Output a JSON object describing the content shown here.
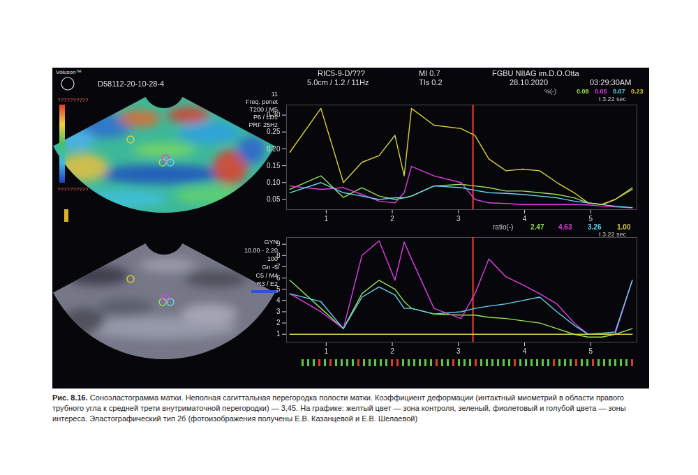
{
  "screen": {
    "brand": "Voluson™",
    "file_id": "D58112-20-10-28-4",
    "probe": "RIC5-9-D/???",
    "mi": "MI 0.7",
    "institution": "FGBU NIIAG im.D.O.Otta",
    "depth": "5.0cm / 1.2 / 11Hz",
    "tis": "TIs 0.2",
    "date": "28.10.2020",
    "time": "03:29:30AM",
    "elasto_settings": [
      "11",
      "Freq. penet",
      "T200 / M5",
      "P6 / LD1",
      "PRF 25Hz"
    ],
    "colorbar_labels": [
      "??????????",
      "??????????"
    ],
    "bmode_settings": [
      "GYN",
      "10.00 - 2.20",
      "100",
      "Gn -5",
      "C5 / M4",
      "R3 / E2"
    ]
  },
  "chart_data": [
    {
      "type": "line",
      "readout_label": "%(-)",
      "time_label": "t 3.22 sec",
      "cursor_x": 3.22,
      "x": [
        0.45,
        0.92,
        1.26,
        1.54,
        1.8,
        2.04,
        2.18,
        2.29,
        2.63,
        3.04,
        3.25,
        3.46,
        3.72,
        3.97,
        4.23,
        4.49,
        4.75,
        4.96,
        5.17,
        5.37,
        5.63
      ],
      "xlim": [
        0.4,
        5.7
      ],
      "xticks": [
        1,
        2,
        3,
        4,
        5
      ],
      "ylim": [
        0.02,
        0.33
      ],
      "yticks": [
        0.05,
        {
          "value": 0.1,
          "label": "0.10"
        },
        0.15,
        {
          "value": 0.2,
          "label": "0.20"
        },
        0.25,
        {
          "value": 0.3,
          "label": "0.30"
        }
      ],
      "series": [
        {
          "color": "#9be15a",
          "readout": "0.08",
          "values": [
            0.08,
            0.12,
            0.056,
            0.085,
            0.06,
            0.05,
            0.055,
            0.06,
            0.09,
            0.095,
            0.09,
            0.085,
            0.075,
            0.075,
            0.07,
            0.065,
            0.055,
            0.04,
            0.035,
            0.05,
            0.085
          ]
        },
        {
          "color": "#e23ee6",
          "readout": "0.05",
          "values": [
            0.09,
            0.08,
            0.085,
            0.065,
            0.045,
            0.04,
            0.07,
            0.148,
            0.12,
            0.1,
            0.05,
            0.04,
            0.038,
            0.035,
            0.035,
            0.035,
            0.035,
            0.034,
            0.03,
            0.028,
            0.025
          ]
        },
        {
          "color": "#62d6f0",
          "readout": "0.07",
          "values": [
            0.07,
            0.1,
            0.07,
            0.06,
            0.05,
            0.055,
            0.055,
            0.06,
            0.09,
            0.085,
            0.077,
            0.07,
            0.068,
            0.065,
            0.06,
            0.055,
            0.045,
            0.04,
            0.035,
            0.03,
            0.026
          ]
        },
        {
          "color": "#d9d23c",
          "readout": "0.23",
          "values": [
            0.19,
            0.32,
            0.1,
            0.16,
            0.18,
            0.24,
            0.12,
            0.32,
            0.27,
            0.26,
            0.24,
            0.17,
            0.135,
            0.14,
            0.135,
            0.1,
            0.07,
            0.04,
            0.035,
            0.05,
            0.08
          ]
        }
      ]
    },
    {
      "type": "line",
      "readout_label": "ratio(-)",
      "time_label": "t 3.22 sec",
      "cursor_x": 3.22,
      "x": [
        0.45,
        0.92,
        1.26,
        1.54,
        1.8,
        2.04,
        2.18,
        2.29,
        2.63,
        3.04,
        3.25,
        3.46,
        3.72,
        3.97,
        4.23,
        4.49,
        4.75,
        4.96,
        5.17,
        5.37,
        5.63
      ],
      "xlim": [
        0.4,
        5.7
      ],
      "xticks": [
        1,
        2,
        3,
        4,
        5
      ],
      "ylim": [
        0.3,
        9.6
      ],
      "yticks": [
        1,
        2,
        3,
        4,
        5,
        6,
        7,
        8,
        9
      ],
      "series": [
        {
          "color": "#9be15a",
          "readout": "2.47",
          "values": [
            5.8,
            3.3,
            1.5,
            4.6,
            5.8,
            5.0,
            3.9,
            3.3,
            2.8,
            2.7,
            2.7,
            2.5,
            2.4,
            2.2,
            2.0,
            1.5,
            1.0,
            0.75,
            0.75,
            1.0,
            1.5
          ]
        },
        {
          "color": "#e23ee6",
          "readout": "4.63",
          "values": [
            4.6,
            3.0,
            1.5,
            8.0,
            9.3,
            5.8,
            9.2,
            7.7,
            3.3,
            2.4,
            4.6,
            7.7,
            6.1,
            5.4,
            4.6,
            3.7,
            2.0,
            1.0,
            1.0,
            1.0,
            5.8
          ]
        },
        {
          "color": "#62d6f0",
          "readout": "3.26",
          "values": [
            4.6,
            3.9,
            1.5,
            4.3,
            5.2,
            4.5,
            3.3,
            3.3,
            2.8,
            3.0,
            3.3,
            3.5,
            3.7,
            4.0,
            4.3,
            3.0,
            1.8,
            1.0,
            1.1,
            1.2,
            5.8
          ]
        },
        {
          "color": "#d9d23c",
          "readout": "1.00",
          "values": [
            1,
            1,
            1,
            1,
            1,
            1,
            1,
            1,
            1,
            1,
            1,
            1,
            1,
            1,
            1,
            1,
            1,
            1,
            1,
            1,
            1
          ]
        }
      ]
    }
  ],
  "caption": {
    "label": "Рис. 8.16.",
    "text": "Соноэластограмма матки. Неполная сагиттальная перегородка полости матки. Коэффициент деформации (интактный миометрий в области правого трубного угла к средней трети внутриматочной перегородки) — 3,45. На графике: желтый цвет — зона контроля, зеленый, фиолетовый и голубой цвета — зоны интереса. Эластографический тип 2б (фотоизображения получены Е.В. Казанцевой и Е.В. Шелаевой)"
  }
}
